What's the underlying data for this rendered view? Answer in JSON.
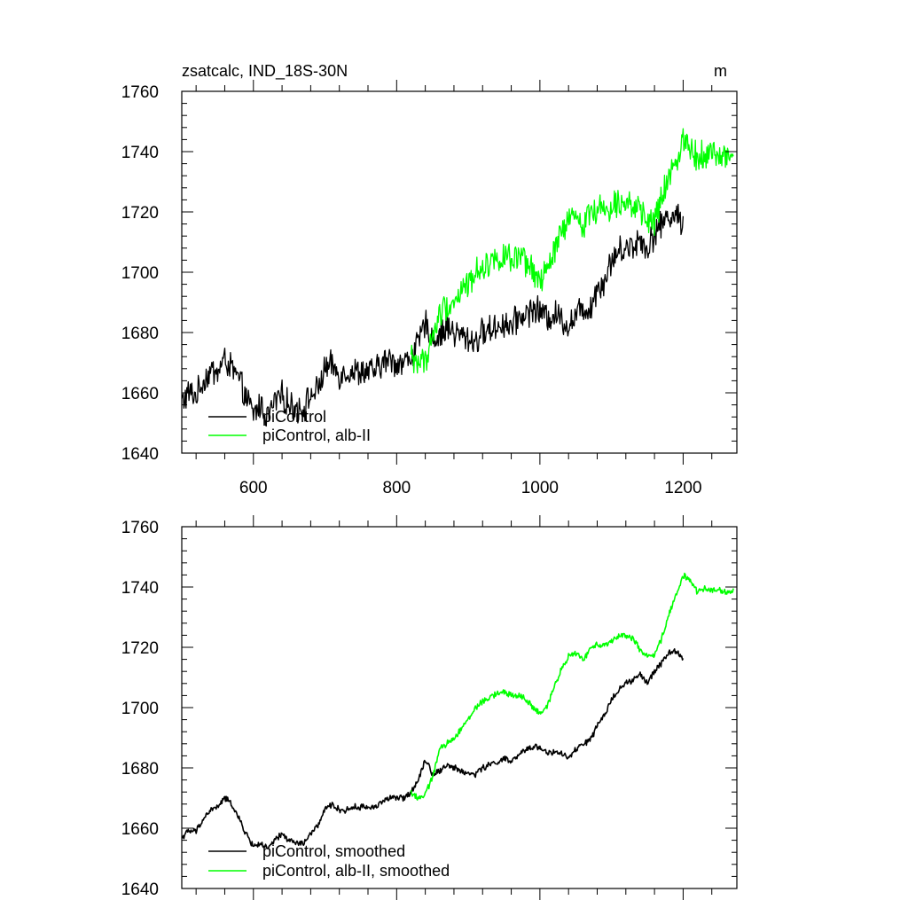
{
  "chart_data": [
    {
      "type": "line",
      "title": "zsatcalc, IND_18S-30N",
      "units": "m",
      "xlim": [
        500,
        1275
      ],
      "ylim": [
        1640,
        1760
      ],
      "x_ticks": [
        600,
        800,
        1000,
        1200
      ],
      "x_tick_labels": [
        "600",
        "800",
        "1000",
        "1200"
      ],
      "y_ticks": [
        1640,
        1660,
        1680,
        1700,
        1720,
        1740,
        1760
      ],
      "y_tick_labels": [
        "1640",
        "1660",
        "1680",
        "1700",
        "1720",
        "1740",
        "1760"
      ],
      "legend_position": "bottom-left",
      "smoothed": false,
      "series": [
        {
          "name": "piControl",
          "color": "#000000",
          "x": [
            500,
            510,
            520,
            530,
            540,
            550,
            560,
            570,
            580,
            590,
            600,
            610,
            620,
            630,
            640,
            650,
            660,
            670,
            680,
            690,
            700,
            710,
            720,
            730,
            740,
            750,
            760,
            770,
            780,
            790,
            800,
            810,
            820,
            830,
            840,
            850,
            860,
            870,
            880,
            890,
            900,
            910,
            920,
            930,
            940,
            950,
            960,
            970,
            980,
            990,
            1000,
            1010,
            1020,
            1030,
            1040,
            1050,
            1060,
            1070,
            1080,
            1090,
            1100,
            1110,
            1120,
            1130,
            1140,
            1150,
            1160,
            1170,
            1180,
            1190,
            1200
          ],
          "y": [
            1657,
            1660,
            1659,
            1664,
            1667,
            1667,
            1671,
            1668,
            1664,
            1658,
            1653,
            1656,
            1652,
            1657,
            1659,
            1656,
            1655,
            1655,
            1659,
            1661,
            1668,
            1669,
            1666,
            1667,
            1667,
            1667,
            1667,
            1667,
            1670,
            1671,
            1670,
            1670,
            1672,
            1676,
            1683,
            1678,
            1679,
            1682,
            1680,
            1679,
            1678,
            1677,
            1680,
            1681,
            1682,
            1683,
            1682,
            1685,
            1686,
            1688,
            1687,
            1685,
            1686,
            1685,
            1682,
            1686,
            1688,
            1688,
            1695,
            1697,
            1704,
            1707,
            1708,
            1709,
            1711,
            1708,
            1713,
            1716,
            1719,
            1719,
            1716
          ]
        },
        {
          "name": "piControl, alb-II",
          "color": "#00ff00",
          "x": [
            820,
            830,
            840,
            850,
            860,
            870,
            880,
            890,
            900,
            910,
            920,
            930,
            940,
            950,
            960,
            970,
            980,
            990,
            1000,
            1010,
            1020,
            1030,
            1040,
            1050,
            1060,
            1070,
            1080,
            1090,
            1100,
            1110,
            1120,
            1130,
            1140,
            1150,
            1160,
            1170,
            1180,
            1190,
            1200,
            1210,
            1220,
            1230,
            1240,
            1250,
            1260,
            1270
          ],
          "y": [
            1672,
            1670,
            1671,
            1678,
            1686,
            1689,
            1690,
            1694,
            1696,
            1700,
            1702,
            1703,
            1705,
            1705,
            1704,
            1704,
            1703,
            1700,
            1697,
            1700,
            1707,
            1713,
            1717,
            1718,
            1716,
            1720,
            1721,
            1721,
            1722,
            1724,
            1724,
            1723,
            1719,
            1717,
            1717,
            1724,
            1731,
            1737,
            1744,
            1742,
            1738,
            1740,
            1739,
            1739,
            1738,
            1739
          ]
        }
      ]
    },
    {
      "type": "line",
      "xlim": [
        500,
        1275
      ],
      "ylim": [
        1640,
        1760
      ],
      "x_ticks": [
        600,
        800,
        1000,
        1200
      ],
      "y_ticks": [
        1640,
        1660,
        1680,
        1700,
        1720,
        1740,
        1760
      ],
      "y_tick_labels": [
        "1640",
        "1660",
        "1680",
        "1700",
        "1720",
        "1740",
        "1760"
      ],
      "legend_position": "bottom-left",
      "smoothed": true,
      "series": [
        {
          "name": "piControl, smoothed",
          "color": "#000000",
          "x": [
            500,
            510,
            520,
            530,
            540,
            550,
            560,
            570,
            580,
            590,
            600,
            610,
            620,
            630,
            640,
            650,
            660,
            670,
            680,
            690,
            700,
            710,
            720,
            730,
            740,
            750,
            760,
            770,
            780,
            790,
            800,
            810,
            820,
            830,
            840,
            850,
            860,
            870,
            880,
            890,
            900,
            910,
            920,
            930,
            940,
            950,
            960,
            970,
            980,
            990,
            1000,
            1010,
            1020,
            1030,
            1040,
            1050,
            1060,
            1070,
            1080,
            1090,
            1100,
            1110,
            1120,
            1130,
            1140,
            1150,
            1160,
            1170,
            1180,
            1190,
            1200
          ],
          "y": [
            1657,
            1659,
            1659,
            1663,
            1666,
            1667,
            1670,
            1668,
            1663,
            1658,
            1654,
            1655,
            1653,
            1656,
            1658,
            1656,
            1655,
            1655,
            1658,
            1661,
            1666,
            1668,
            1666,
            1666,
            1667,
            1667,
            1667,
            1667,
            1669,
            1670,
            1670,
            1670,
            1672,
            1676,
            1683,
            1678,
            1679,
            1681,
            1680,
            1679,
            1678,
            1678,
            1680,
            1681,
            1682,
            1683,
            1682,
            1684,
            1686,
            1687,
            1687,
            1685,
            1685,
            1685,
            1683,
            1686,
            1688,
            1689,
            1694,
            1697,
            1703,
            1706,
            1708,
            1709,
            1711,
            1708,
            1712,
            1715,
            1718,
            1719,
            1716
          ]
        },
        {
          "name": "piControl, alb-II, smoothed",
          "color": "#00ff00",
          "x": [
            820,
            830,
            840,
            850,
            860,
            870,
            880,
            890,
            900,
            910,
            920,
            930,
            940,
            950,
            960,
            970,
            980,
            990,
            1000,
            1010,
            1020,
            1030,
            1040,
            1050,
            1060,
            1070,
            1080,
            1090,
            1100,
            1110,
            1120,
            1130,
            1140,
            1150,
            1160,
            1170,
            1180,
            1190,
            1200,
            1210,
            1220,
            1230,
            1240,
            1250,
            1260,
            1270
          ],
          "y": [
            1672,
            1670,
            1671,
            1677,
            1686,
            1688,
            1690,
            1693,
            1696,
            1700,
            1702,
            1703,
            1705,
            1705,
            1704,
            1704,
            1703,
            1700,
            1698,
            1700,
            1707,
            1713,
            1717,
            1718,
            1716,
            1719,
            1721,
            1721,
            1722,
            1724,
            1724,
            1723,
            1719,
            1717,
            1717,
            1723,
            1731,
            1737,
            1744,
            1742,
            1738,
            1740,
            1739,
            1739,
            1738,
            1739
          ]
        }
      ]
    }
  ]
}
